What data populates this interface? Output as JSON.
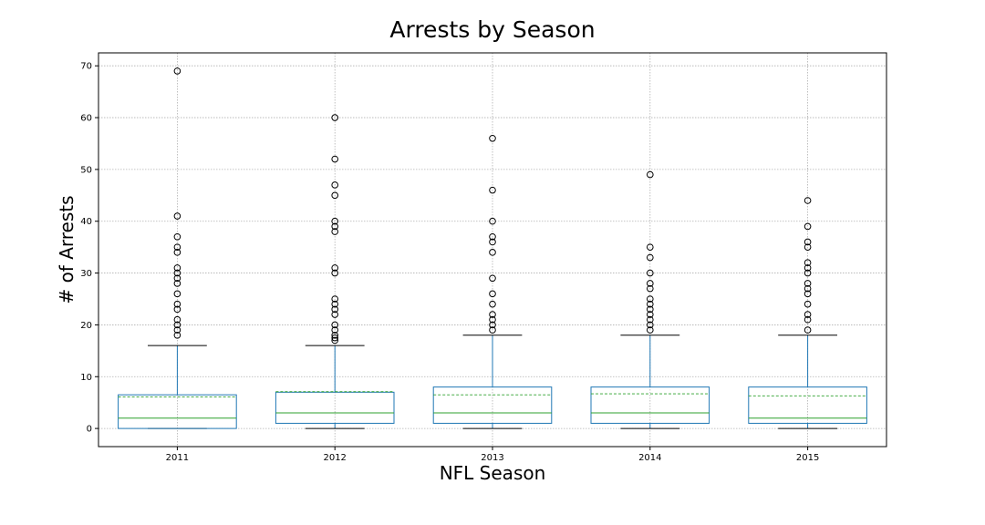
{
  "chart_data": {
    "type": "box",
    "title": "Arrests by Season",
    "xlabel": "NFL Season",
    "ylabel": "# of Arrests",
    "categories": [
      "2011",
      "2012",
      "2013",
      "2014",
      "2015"
    ],
    "ylim": [
      -3.5,
      72.5
    ],
    "yticks": [
      0,
      10,
      20,
      30,
      40,
      50,
      60,
      70
    ],
    "grid": true,
    "colors": {
      "box": "#1f77b4",
      "median": "#2ca02c",
      "mean": "#2ca02c",
      "cap": "#000000",
      "flier": "#000000"
    },
    "boxes": [
      {
        "category": "2011",
        "whisker_low": 0,
        "q1": 0,
        "median": 2,
        "mean": 6.1,
        "q3": 6.5,
        "whisker_high": 16,
        "outliers": [
          18,
          19,
          20,
          21,
          23,
          24,
          26,
          28,
          29,
          30,
          31,
          34,
          35,
          37,
          41,
          69
        ]
      },
      {
        "category": "2012",
        "whisker_low": 0,
        "q1": 1,
        "median": 3,
        "mean": 7.1,
        "q3": 7,
        "whisker_high": 16,
        "outliers": [
          17,
          17.5,
          18,
          19,
          20,
          22,
          23,
          24,
          25,
          30,
          31,
          38,
          39,
          40,
          45,
          47,
          52,
          60
        ]
      },
      {
        "category": "2013",
        "whisker_low": 0,
        "q1": 1,
        "median": 3,
        "mean": 6.5,
        "q3": 8,
        "whisker_high": 18,
        "outliers": [
          19,
          20,
          21,
          22,
          24,
          26,
          29,
          34,
          36,
          37,
          40,
          46,
          56
        ]
      },
      {
        "category": "2014",
        "whisker_low": 0,
        "q1": 1,
        "median": 3,
        "mean": 6.7,
        "q3": 8,
        "whisker_high": 18,
        "outliers": [
          19,
          20,
          21,
          22,
          23,
          24,
          25,
          27,
          28,
          30,
          33,
          35,
          49
        ]
      },
      {
        "category": "2015",
        "whisker_low": 0,
        "q1": 1,
        "median": 2,
        "mean": 6.3,
        "q3": 8,
        "whisker_high": 18,
        "outliers": [
          19,
          21,
          22,
          24,
          26,
          27,
          28,
          30,
          31,
          32,
          35,
          36,
          39,
          44
        ]
      }
    ]
  }
}
